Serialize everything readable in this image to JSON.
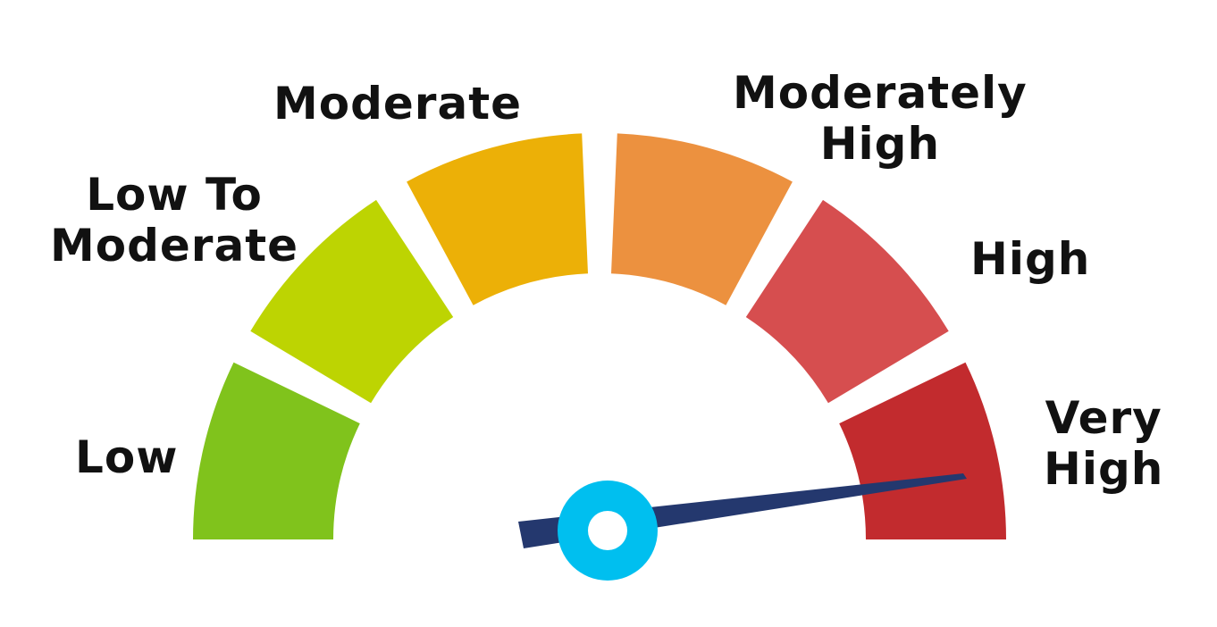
{
  "gauge": {
    "segments": [
      {
        "name": "low",
        "lines": [
          "Low"
        ],
        "color": "#80c31c"
      },
      {
        "name": "low-to-moderate",
        "lines": [
          "Low To",
          "Moderate"
        ],
        "color": "#bdd402"
      },
      {
        "name": "moderate",
        "lines": [
          "Moderate"
        ],
        "color": "#ecb007"
      },
      {
        "name": "moderately-high",
        "lines": [
          "Moderately",
          "High"
        ],
        "color": "#ec913f"
      },
      {
        "name": "high",
        "lines": [
          "High"
        ],
        "color": "#d64e4f"
      },
      {
        "name": "very-high",
        "lines": [
          "Very",
          "High"
        ],
        "color": "#c22b2e"
      }
    ],
    "selected_level": "Very High",
    "needle_color": "#24386e",
    "hub_color": "#00bfef"
  }
}
